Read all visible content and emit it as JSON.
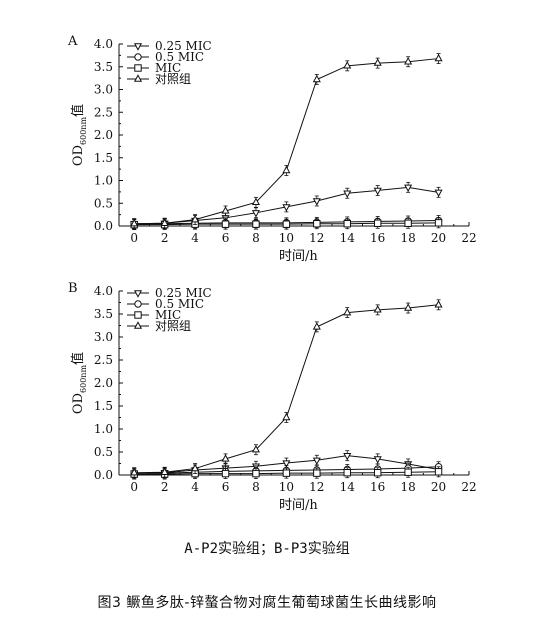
{
  "chart_data": [
    {
      "type": "line",
      "panel_label": "A",
      "xlabel": "时间/h",
      "ylabel": "OD",
      "ylabel_sub": "600nm",
      "ylabel_suffix": "值",
      "xlim": [
        -1,
        22
      ],
      "ylim": [
        0,
        4.0
      ],
      "xticks": [
        0,
        2,
        4,
        6,
        8,
        10,
        12,
        14,
        16,
        18,
        20,
        22
      ],
      "yticks": [
        0.0,
        0.5,
        1.0,
        1.5,
        2.0,
        2.5,
        3.0,
        3.5,
        4.0
      ],
      "yticklabels": [
        "0.0",
        "0.5",
        "1.0",
        "1.5",
        "2.0",
        "2.5",
        "3.0",
        "3.5",
        "4.0"
      ],
      "legend_position": "top-left",
      "series": [
        {
          "name": "0.25 MIC",
          "marker": "triangle-down",
          "x": [
            0,
            2,
            4,
            6,
            8,
            10,
            12,
            14,
            16,
            18,
            20
          ],
          "values": [
            0.05,
            0.06,
            0.12,
            0.18,
            0.29,
            0.42,
            0.55,
            0.72,
            0.78,
            0.85,
            0.74
          ]
        },
        {
          "name": "0.5 MIC",
          "marker": "circle",
          "x": [
            0,
            2,
            4,
            6,
            8,
            10,
            12,
            14,
            16,
            18,
            20
          ],
          "values": [
            0.04,
            0.05,
            0.06,
            0.07,
            0.07,
            0.07,
            0.08,
            0.09,
            0.1,
            0.11,
            0.12
          ]
        },
        {
          "name": "MIC",
          "marker": "square",
          "x": [
            0,
            2,
            4,
            6,
            8,
            10,
            12,
            14,
            16,
            18,
            20
          ],
          "values": [
            0.03,
            0.03,
            0.04,
            0.04,
            0.04,
            0.04,
            0.05,
            0.05,
            0.06,
            0.06,
            0.07
          ]
        },
        {
          "name": "对照组",
          "marker": "triangle-up",
          "x": [
            0,
            2,
            4,
            6,
            8,
            10,
            12,
            14,
            16,
            18,
            20
          ],
          "values": [
            0.05,
            0.06,
            0.14,
            0.33,
            0.52,
            1.22,
            3.22,
            3.52,
            3.58,
            3.61,
            3.68
          ]
        }
      ]
    },
    {
      "type": "line",
      "panel_label": "B",
      "xlabel": "时间/h",
      "ylabel": "OD",
      "ylabel_sub": "600nm",
      "ylabel_suffix": "值",
      "xlim": [
        -1,
        22
      ],
      "ylim": [
        0,
        4.0
      ],
      "xticks": [
        0,
        2,
        4,
        6,
        8,
        10,
        12,
        14,
        16,
        18,
        20,
        22
      ],
      "yticks": [
        0.0,
        0.5,
        1.0,
        1.5,
        2.0,
        2.5,
        3.0,
        3.5,
        4.0
      ],
      "yticklabels": [
        "0.0",
        "0.5",
        "1.0",
        "1.5",
        "2.0",
        "2.5",
        "3.0",
        "3.5",
        "4.0"
      ],
      "legend_position": "top-left",
      "series": [
        {
          "name": "0.25 MIC",
          "marker": "triangle-down",
          "x": [
            0,
            2,
            4,
            6,
            8,
            10,
            12,
            14,
            16,
            18,
            20
          ],
          "values": [
            0.04,
            0.05,
            0.11,
            0.15,
            0.19,
            0.26,
            0.32,
            0.42,
            0.35,
            0.24,
            0.12
          ]
        },
        {
          "name": "0.5 MIC",
          "marker": "circle",
          "x": [
            0,
            2,
            4,
            6,
            8,
            10,
            12,
            14,
            16,
            18,
            20
          ],
          "values": [
            0.04,
            0.04,
            0.06,
            0.08,
            0.09,
            0.1,
            0.11,
            0.12,
            0.13,
            0.15,
            0.18
          ]
        },
        {
          "name": "MIC",
          "marker": "square",
          "x": [
            0,
            2,
            4,
            6,
            8,
            10,
            12,
            14,
            16,
            18,
            20
          ],
          "values": [
            0.02,
            0.02,
            0.03,
            0.03,
            0.03,
            0.04,
            0.04,
            0.05,
            0.05,
            0.06,
            0.07
          ]
        },
        {
          "name": "对照组",
          "marker": "triangle-up",
          "x": [
            0,
            2,
            4,
            6,
            8,
            10,
            12,
            14,
            16,
            18,
            20
          ],
          "values": [
            0.05,
            0.06,
            0.14,
            0.35,
            0.55,
            1.25,
            3.22,
            3.53,
            3.59,
            3.63,
            3.7
          ]
        }
      ]
    }
  ],
  "captions": {
    "subfigure": "A-P2实验组；B-P3实验组",
    "figure": "图3 鳜鱼多肽-锌螯合物对腐生葡萄球菌生长曲线影响"
  }
}
